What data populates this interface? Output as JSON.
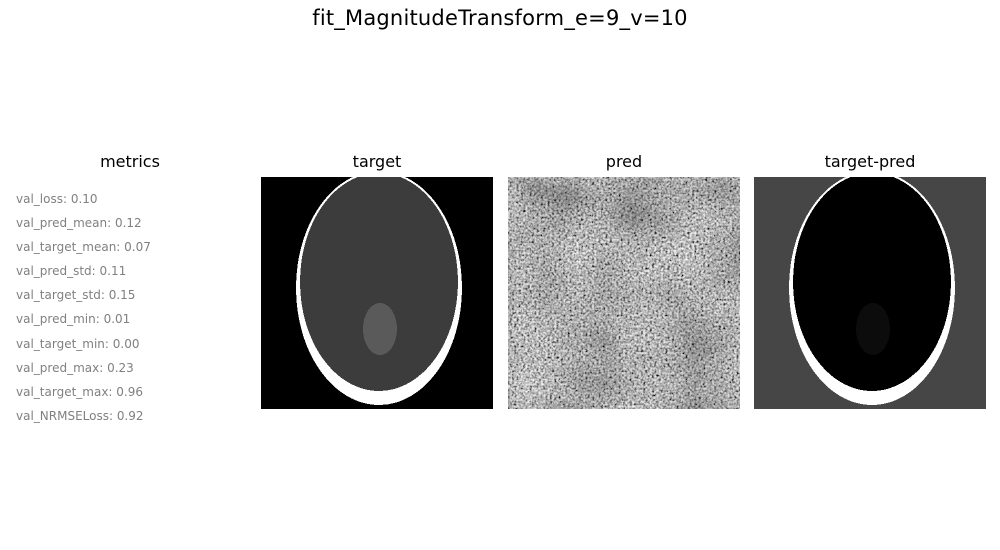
{
  "figure": {
    "title": "fit_MagnitudeTransform_e=9_v=10"
  },
  "panels": {
    "metrics_title": "metrics",
    "target_title": "target",
    "pred_title": "pred",
    "diff_title": "target-pred"
  },
  "metrics": [
    "val_loss: 0.10",
    "val_pred_mean: 0.12",
    "val_target_mean: 0.07",
    "val_pred_std: 0.11",
    "val_target_std: 0.15",
    "val_pred_min: 0.01",
    "val_target_min: 0.00",
    "val_pred_max: 0.23",
    "val_target_max: 0.96",
    "val_NRMSELoss: 0.92"
  ],
  "colors": {
    "metrics_text": "#808080",
    "target_background": "#000000",
    "target_head": "#3c3c3c",
    "target_rim": "#ffffff",
    "target_lesion": "#5a5a5a",
    "diff_background": "#464646",
    "diff_head": "#000000",
    "diff_rim": "#ffffff",
    "diff_lesion": "#0c0c0c"
  }
}
